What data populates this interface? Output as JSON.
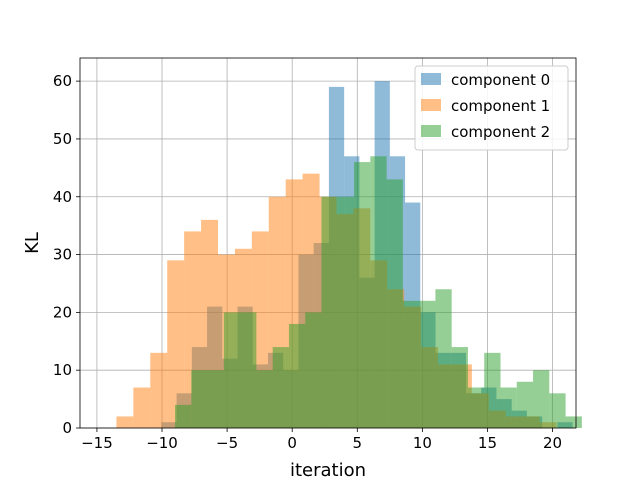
{
  "chart_data": {
    "type": "histogram",
    "xlabel": "iteration",
    "ylabel": "KL",
    "xlim": [
      -16.3,
      21.8
    ],
    "ylim": [
      0,
      64
    ],
    "grid": true,
    "legend_position": "top-right",
    "x_ticks": [
      -15,
      -10,
      -5,
      0,
      5,
      10,
      15,
      20
    ],
    "y_ticks": [
      0,
      10,
      20,
      30,
      40,
      50,
      60
    ],
    "series": [
      {
        "name": "component 0",
        "color": "#1f77b4",
        "opacity": 0.5,
        "bin_start": -10.05,
        "bin_width": 1.17,
        "counts": [
          1,
          6,
          14,
          21,
          12,
          21,
          11,
          13,
          10,
          30,
          32,
          59,
          47,
          26,
          60,
          47,
          39,
          20,
          13,
          13,
          6,
          7,
          5,
          3,
          2,
          0,
          1
        ]
      },
      {
        "name": "component 1",
        "color": "#ff7f0e",
        "opacity": 0.5,
        "bin_start": -13.5,
        "bin_width": 1.3,
        "counts": [
          2,
          7,
          13,
          29,
          34,
          36,
          30,
          31,
          34,
          40,
          43,
          44,
          40,
          37,
          38,
          29,
          24,
          21,
          14,
          11,
          11,
          6,
          3,
          2,
          2,
          1
        ]
      },
      {
        "name": "component 2",
        "color": "#2ca02c",
        "opacity": 0.5,
        "bin_start": -9.0,
        "bin_width": 1.25,
        "counts": [
          4,
          10,
          10,
          20,
          20,
          10,
          14,
          18,
          20,
          40,
          40,
          46,
          47,
          43,
          22,
          22,
          24,
          14,
          7,
          13,
          7,
          8,
          10,
          6,
          2
        ]
      }
    ]
  }
}
